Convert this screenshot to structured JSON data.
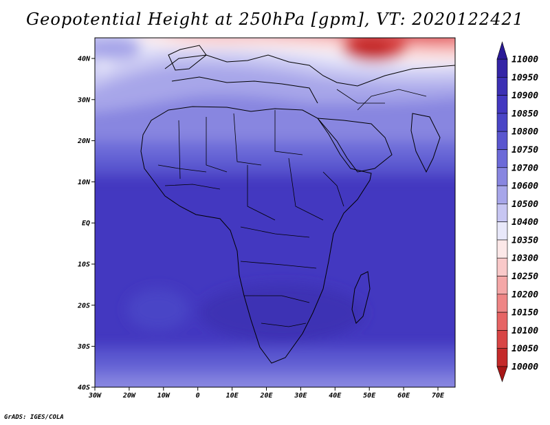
{
  "title": "Geopotential Height at 250hPa [gpm], VT: 2020122421",
  "credit": "GrADS: IGES/COLA",
  "lat_ticks": [
    "40N",
    "30N",
    "20N",
    "10N",
    "EQ",
    "10S",
    "20S",
    "30S",
    "40S"
  ],
  "lon_ticks": [
    "30W",
    "20W",
    "10W",
    "0",
    "10E",
    "20E",
    "30E",
    "40E",
    "50E",
    "60E",
    "70E"
  ],
  "colorbar": {
    "levels": [
      "11000",
      "10950",
      "10900",
      "10850",
      "10800",
      "10750",
      "10700",
      "10600",
      "10500",
      "10400",
      "10350",
      "10300",
      "10250",
      "10200",
      "10150",
      "10100",
      "10050",
      "10000"
    ],
    "colors": [
      "#2a1a96",
      "#3425a6",
      "#3c30b4",
      "#4338c0",
      "#4a45c6",
      "#5a56cf",
      "#6c6ad8",
      "#8886e0",
      "#a7a6e9",
      "#c7c6f2",
      "#e8e8fa",
      "#fce8e8",
      "#f9c9c9",
      "#f4a7a7",
      "#ee8585",
      "#e66464",
      "#d84545",
      "#c42a2a",
      "#a81717"
    ]
  }
}
